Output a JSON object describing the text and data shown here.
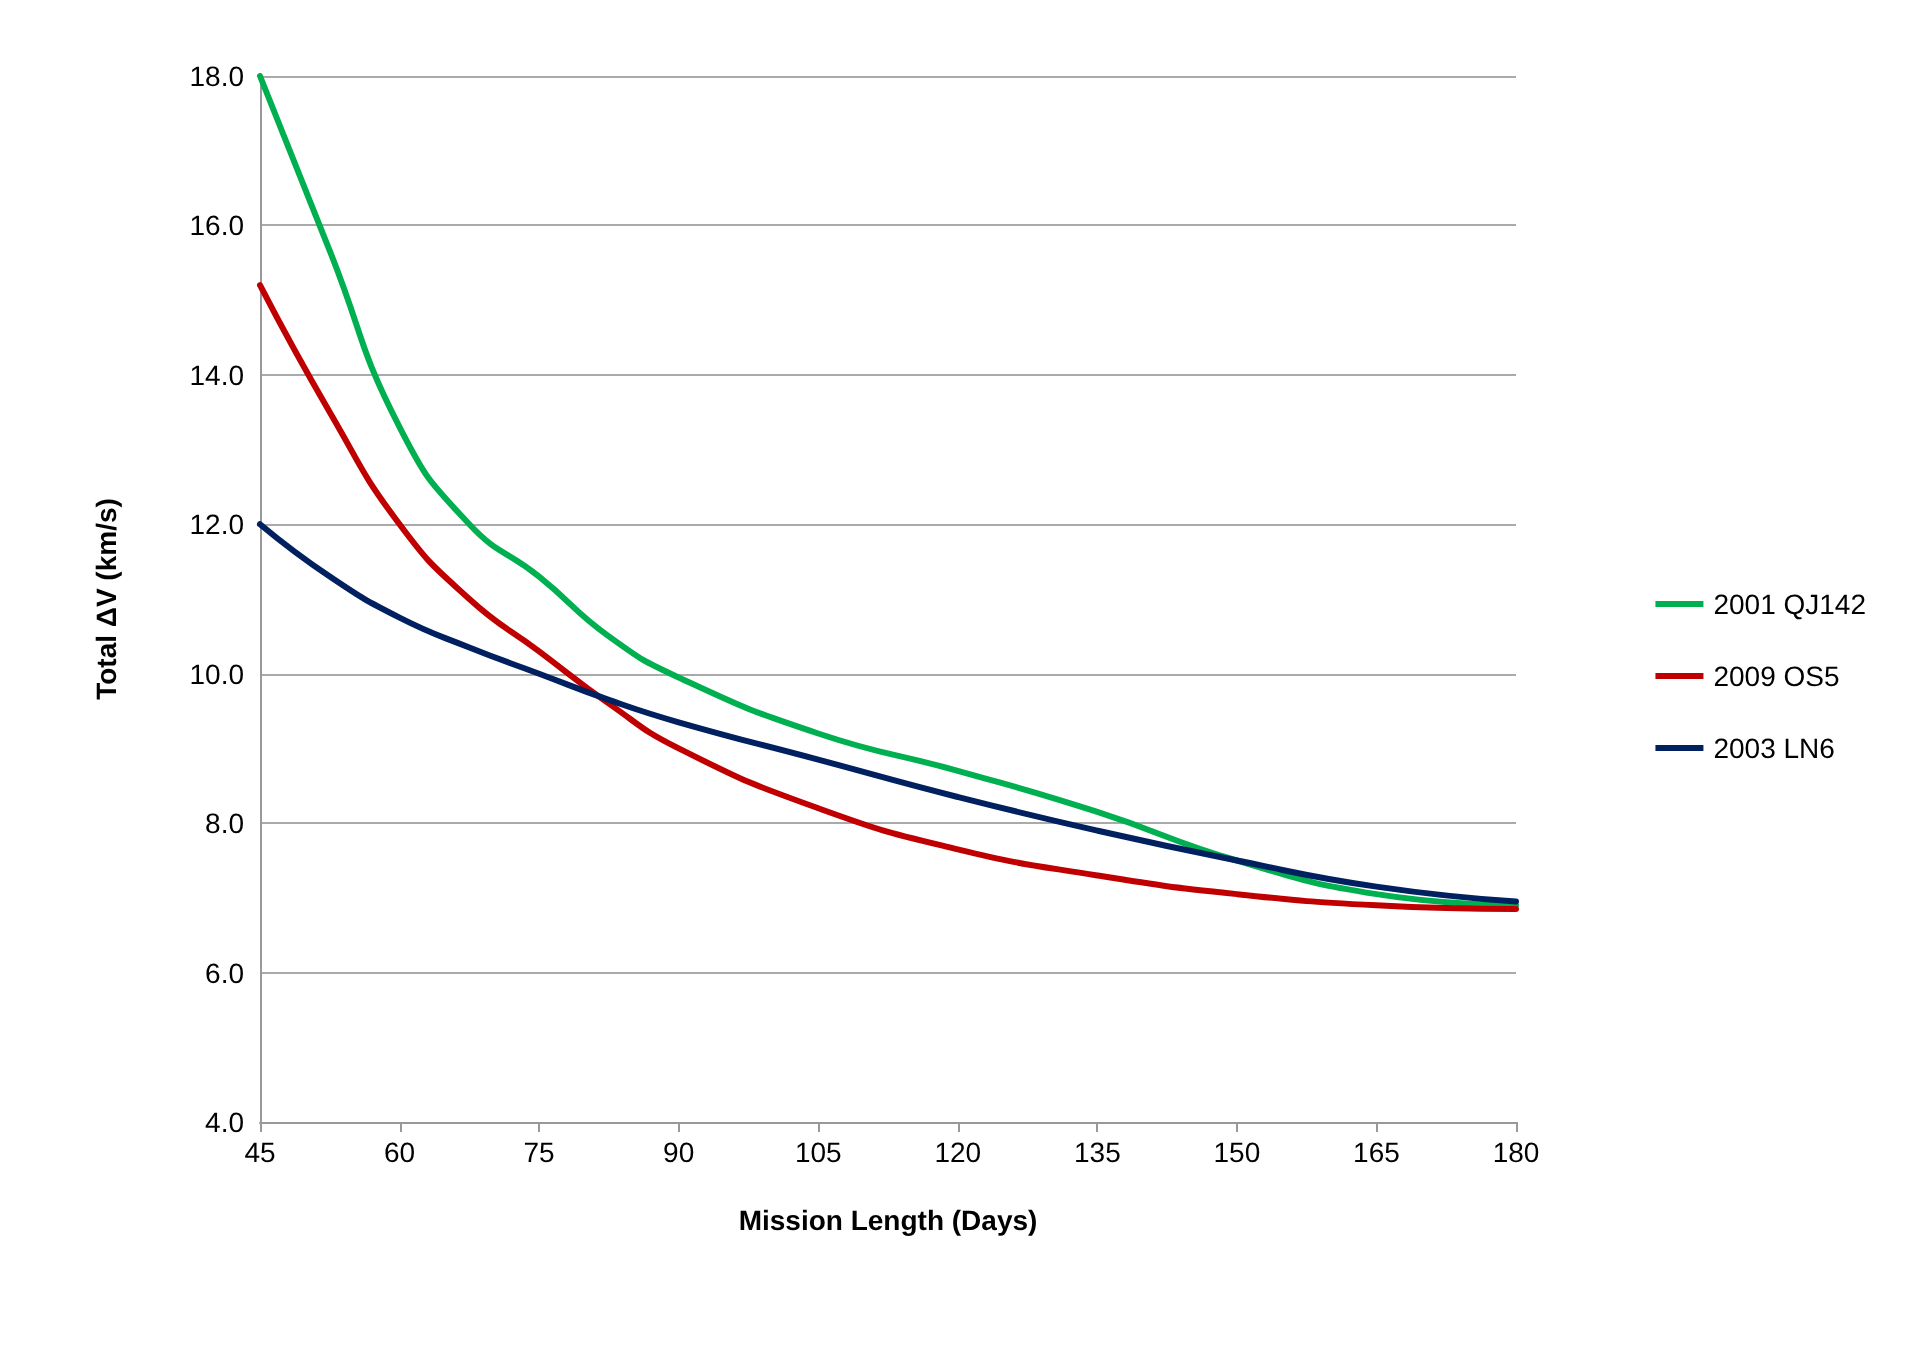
{
  "chart_data": {
    "type": "line",
    "xlabel": "Mission Length (Days)",
    "ylabel": "Total ΔV (km/s)",
    "x": [
      45,
      52.5,
      60,
      67.5,
      75,
      82.5,
      90,
      105,
      120,
      135,
      150,
      165,
      180
    ],
    "series": [
      {
        "name": "2001 QJ142",
        "color": "#00b050",
        "values": [
          18.0,
          15.66,
          13.3,
          12.0,
          11.3,
          10.5,
          9.95,
          9.2,
          8.7,
          8.15,
          7.5,
          7.05,
          6.9
        ]
      },
      {
        "name": "2009 OS5",
        "color": "#c00000",
        "values": [
          15.2,
          13.5,
          12.0,
          11.0,
          10.3,
          9.6,
          9.0,
          8.2,
          7.65,
          7.3,
          7.05,
          6.9,
          6.85
        ]
      },
      {
        "name": "2003 LN6",
        "color": "#002060",
        "values": [
          12.0,
          11.3,
          10.75,
          10.35,
          10.0,
          9.65,
          9.35,
          8.85,
          8.35,
          7.9,
          7.5,
          7.15,
          6.95
        ]
      }
    ],
    "xlim": [
      45,
      180
    ],
    "xticks": [
      45,
      60,
      75,
      90,
      105,
      120,
      135,
      150,
      165,
      180
    ],
    "ylim": [
      4,
      18
    ],
    "yticks": [
      {
        "value": 4,
        "label": "4.0"
      },
      {
        "value": 6,
        "label": "6.0"
      },
      {
        "value": 8,
        "label": "8.0"
      },
      {
        "value": 10,
        "label": "10.0"
      },
      {
        "value": 12,
        "label": "12.0"
      },
      {
        "value": 14,
        "label": "14.0"
      },
      {
        "value": 16,
        "label": "16.0"
      },
      {
        "value": 18,
        "label": "18.0"
      }
    ],
    "grid": "y",
    "legend": "right",
    "marker": "none",
    "line_style": "solid"
  }
}
